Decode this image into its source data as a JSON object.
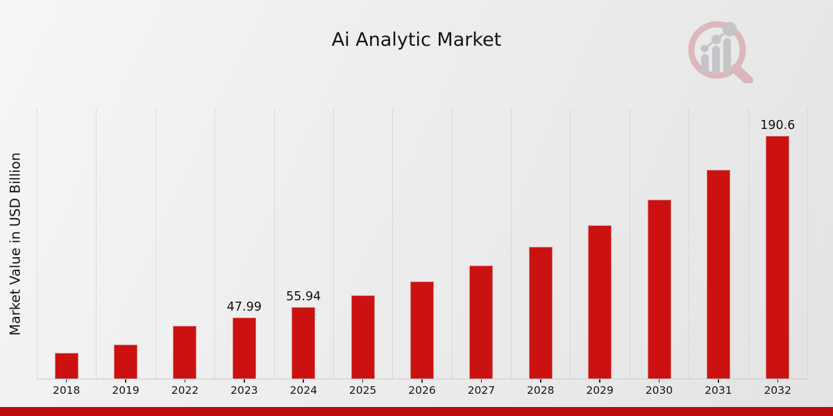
{
  "chart_data": {
    "type": "bar",
    "title": "Ai Analytic Market",
    "xlabel": "",
    "ylabel": "Market Value in USD Billion",
    "categories": [
      "2018",
      "2019",
      "2022",
      "2023",
      "2024",
      "2025",
      "2026",
      "2027",
      "2028",
      "2029",
      "2030",
      "2031",
      "2032"
    ],
    "values": [
      20.16,
      26.5,
      41.17,
      47.99,
      55.94,
      65.21,
      76.02,
      88.62,
      103.31,
      120.43,
      140.39,
      163.66,
      190.6
    ],
    "bar_labels": [
      "",
      "",
      "",
      "47.99",
      "55.94",
      "",
      "",
      "",
      "",
      "",
      "",
      "",
      "190.6"
    ],
    "ylim": [
      0,
      211.3
    ],
    "grid": "vertical-dotted",
    "legend": "none",
    "bar_color": "#cc1111",
    "axis_line_color": "#c9c9c9",
    "gridline_color": "#c5c5c5",
    "text_color": "#141414"
  },
  "footer": {
    "accent_bar_color": "#c00b0e"
  },
  "logo": {
    "icon": "magnifier-bar-chart-logo",
    "ring_color": "#c2525e",
    "bars_color": "#7d7d88"
  }
}
